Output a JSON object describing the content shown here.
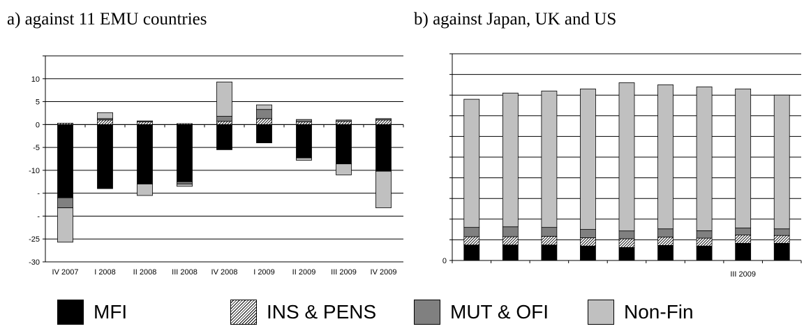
{
  "chart_data": [
    {
      "type": "bar",
      "stacked": true,
      "title": "a) against 11 EMU countries",
      "categories": [
        "IV 2007",
        "I 2008",
        "II 2008",
        "III 2008",
        "IV 2008",
        "I 2009",
        "II 2009",
        "III 2009",
        "IV 2009"
      ],
      "ylim": [
        -30,
        15
      ],
      "yticks": [
        -30,
        -25,
        -20,
        -15,
        -10,
        -5,
        0,
        5,
        10,
        15
      ],
      "ytick_labels": [
        "-30",
        "-25",
        "-",
        "-",
        "-10",
        "-5",
        "0",
        "5",
        "10",
        ""
      ],
      "grid": true,
      "series": [
        {
          "name": "MFI",
          "values": [
            -16.0,
            -14.0,
            -13.0,
            -12.5,
            -5.5,
            -4.0,
            -7.3,
            -8.6,
            -10.2
          ]
        },
        {
          "name": "INS & PENS",
          "values": [
            0.3,
            1.0,
            0.6,
            0.2,
            0.7,
            1.3,
            0.6,
            0.7,
            1.0
          ]
        },
        {
          "name": "MUT & OFI",
          "values": [
            -2.2,
            0.3,
            0.2,
            -0.5,
            1.1,
            2.0,
            0.5,
            0.3,
            0.3
          ]
        },
        {
          "name": "Non-Fin",
          "values": [
            -7.5,
            1.3,
            -2.5,
            -0.5,
            7.5,
            1.0,
            -0.5,
            -2.4,
            -8.0
          ]
        }
      ]
    },
    {
      "type": "bar",
      "stacked": true,
      "title": "b) against Japan, UK and US",
      "categories": [
        "",
        "",
        "",
        "",
        "",
        "",
        "",
        "III 2009",
        ""
      ],
      "ylim": [
        0,
        100
      ],
      "yticks": [
        0,
        10,
        20,
        30,
        40,
        50,
        60,
        70,
        80,
        90,
        100
      ],
      "ytick_labels": [
        "0",
        "",
        "",
        "",
        "",
        "",
        "",
        "",
        "",
        "",
        ""
      ],
      "grid": true,
      "series": [
        {
          "name": "MFI",
          "values": [
            7.5,
            7.5,
            7.5,
            7.0,
            6.3,
            7.3,
            7.0,
            8.3,
            8.3
          ]
        },
        {
          "name": "INS & PENS",
          "values": [
            4.0,
            4.0,
            4.2,
            4.0,
            4.2,
            4.0,
            3.8,
            4.0,
            3.8
          ]
        },
        {
          "name": "MUT & OFI",
          "values": [
            4.5,
            4.8,
            4.3,
            4.0,
            3.8,
            4.0,
            3.6,
            3.4,
            3.2
          ]
        },
        {
          "name": "Non-Fin",
          "values": [
            62.0,
            64.7,
            66.0,
            68.0,
            71.7,
            69.7,
            69.6,
            67.3,
            64.7
          ]
        }
      ]
    }
  ],
  "legend": {
    "items": [
      {
        "label": "MFI",
        "pattern": "solid-black"
      },
      {
        "label": "INS & PENS",
        "pattern": "hatch"
      },
      {
        "label": "MUT & OFI",
        "pattern": "solid-dark-gray"
      },
      {
        "label": "Non-Fin",
        "pattern": "solid-light-gray"
      }
    ]
  },
  "colors": {
    "MFI": "#000000",
    "INS & PENS": "#ffffff",
    "MUT & OFI": "#808080",
    "Non-Fin": "#c0c0c0",
    "grid": "#000000"
  }
}
